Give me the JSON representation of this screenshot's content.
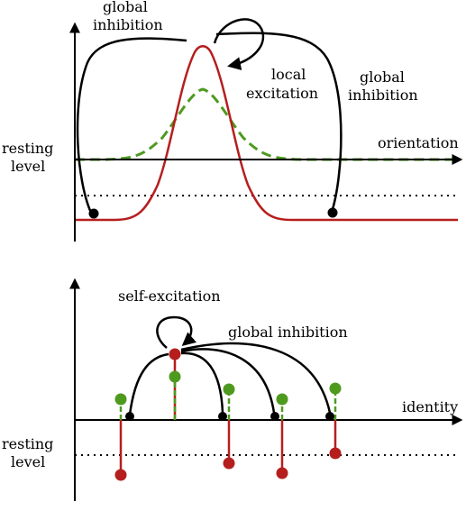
{
  "colors": {
    "axis": "#000000",
    "activation": "#b61e1e",
    "input": "#4e9a1f",
    "resting_level_line": "#000000",
    "interaction_arrow": "#000000"
  },
  "top_panel": {
    "labels": {
      "global_inhibition_left_line1": "global",
      "global_inhibition_left_line2": "inhibition",
      "global_inhibition_right_line1": "global",
      "global_inhibition_right_line2": "inhibition",
      "local_excitation_line1": "local",
      "local_excitation_line2": "excitation",
      "x_axis": "orientation",
      "resting_level_line1": "resting",
      "resting_level_line2": "level"
    }
  },
  "bottom_panel": {
    "labels": {
      "self_excitation": "self-excitation",
      "global_inhibition": "global inhibition",
      "x_axis": "identity",
      "resting_level_line1": "resting",
      "resting_level_line2": "level"
    },
    "nodes": [
      {
        "id": "node-1",
        "input": "above",
        "activation": "below"
      },
      {
        "id": "node-2",
        "input": "above",
        "activation": "above"
      },
      {
        "id": "node-3",
        "input": "above",
        "activation": "below"
      },
      {
        "id": "node-4",
        "input": "above",
        "activation": "below"
      },
      {
        "id": "node-5",
        "input": "above",
        "activation": "below"
      }
    ]
  }
}
